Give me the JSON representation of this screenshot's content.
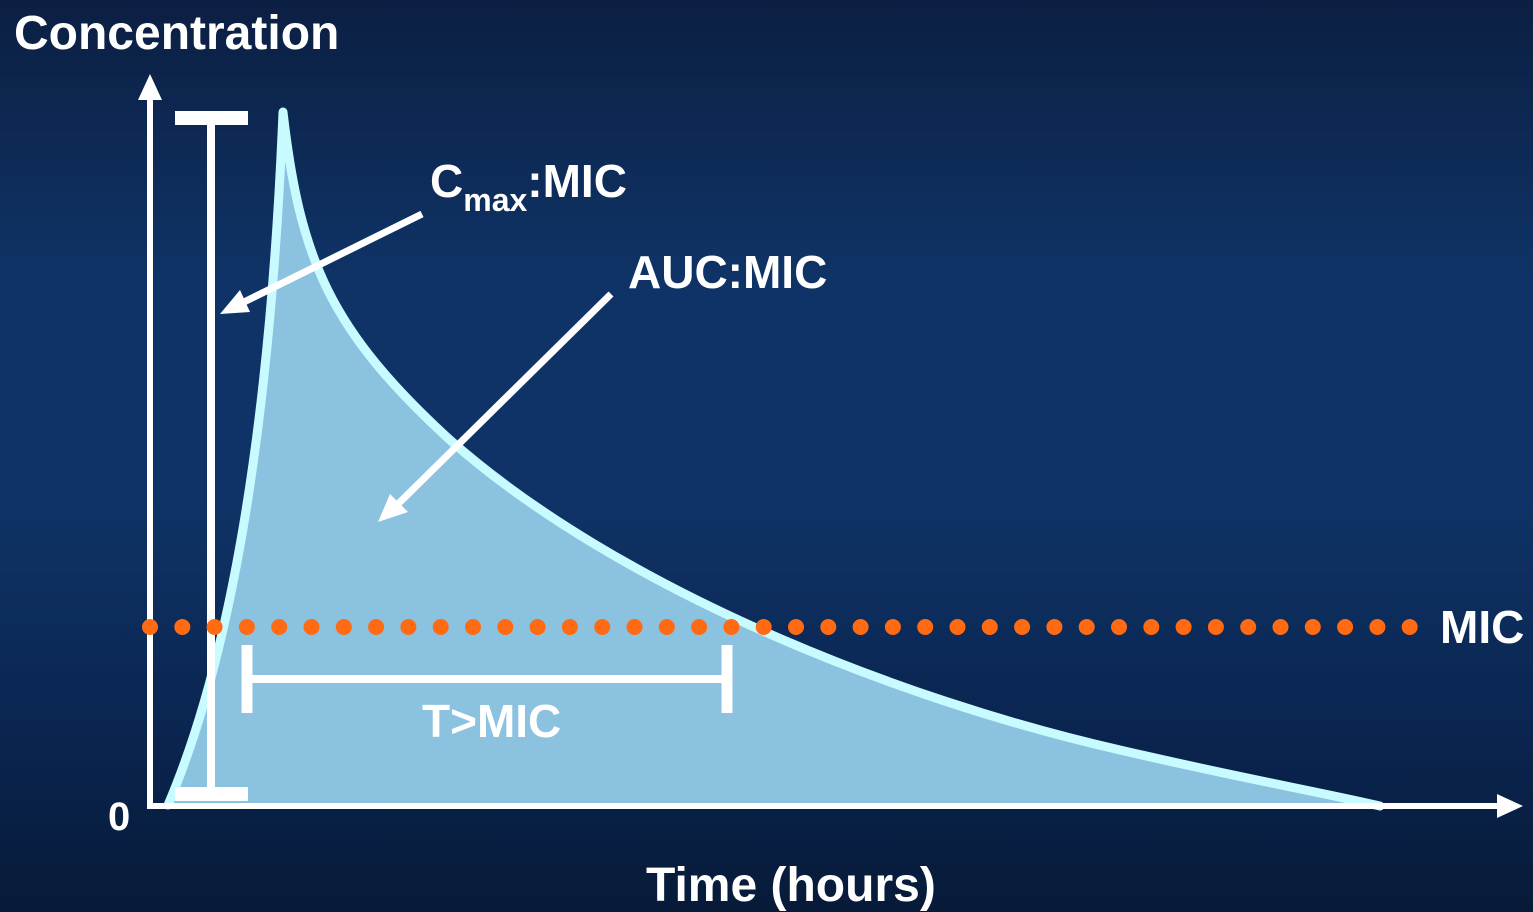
{
  "y_axis_label": "Concentration",
  "x_axis_label": "Time (hours)",
  "origin_label": "0",
  "cmax_label": {
    "main": "C",
    "subscript": "max",
    "suffix": ":MIC"
  },
  "auc_label": "AUC:MIC",
  "mic_label": "MIC",
  "time_above_mic_label": "T>MIC",
  "colors": {
    "background": "#0f3366",
    "area_fill": "#8ac2e0",
    "curve_stroke": "#c8fbff",
    "axis": "#ffffff",
    "mic_dots": "#ff6a13",
    "text": "#ffffff"
  }
}
